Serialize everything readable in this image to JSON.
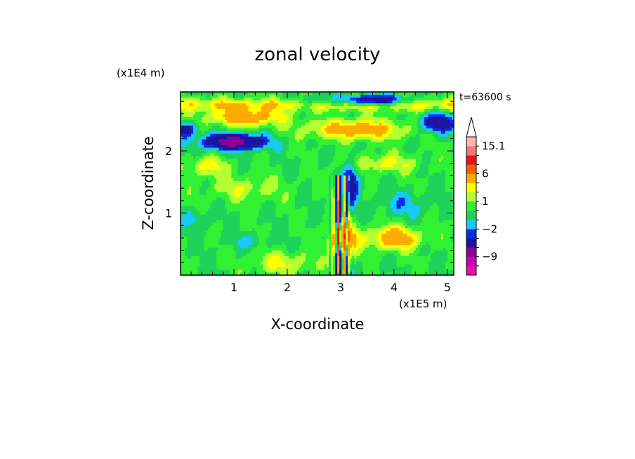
{
  "chart_data": {
    "type": "heatmap",
    "title": "zonal velocity",
    "xlabel": "X-coordinate",
    "ylabel": "Z-coordinate",
    "x_unit": "(x1E5 m)",
    "y_unit": "(x1E4 m)",
    "time_label": "t=63600 s",
    "xlim": [
      0,
      5.12
    ],
    "ylim": [
      0,
      2.95
    ],
    "x_ticks": [
      1,
      2,
      3,
      4,
      5
    ],
    "y_ticks": [
      1,
      2
    ],
    "colorbar": {
      "levels": [
        -15,
        -12,
        -9,
        -6,
        -3,
        -2,
        -1,
        0,
        1,
        2,
        3,
        6,
        9,
        12,
        15.1
      ],
      "colors": [
        "#e60fb4",
        "#c800b4",
        "#8c0096",
        "#1e14a0",
        "#0a2de1",
        "#19c8ff",
        "#1ed25a",
        "#32f032",
        "#b4ff32",
        "#ffff00",
        "#ffaa00",
        "#ff5a00",
        "#e61414",
        "#f57878",
        "#ffb4b4"
      ],
      "labels": [
        {
          "value": 15.1,
          "text": "15.1"
        },
        {
          "value": 6,
          "text": "6"
        },
        {
          "value": 1,
          "text": "1"
        },
        {
          "value": -2,
          "text": "−2"
        },
        {
          "value": -9,
          "text": "−9"
        }
      ],
      "extend_max": true
    },
    "features": [
      {
        "type": "band",
        "x": [
          0,
          5.12
        ],
        "z": 2.75,
        "dz": 0.1,
        "v": 2.5
      },
      {
        "type": "blob",
        "x": 1.2,
        "z": 2.55,
        "rx": 0.7,
        "rz": 0.14,
        "v": 4.5
      },
      {
        "type": "blob",
        "x": 3.3,
        "z": 2.35,
        "rx": 0.9,
        "rz": 0.16,
        "v": 4.2
      },
      {
        "type": "blob",
        "x": 1.0,
        "z": 2.15,
        "rx": 0.55,
        "rz": 0.12,
        "v": -8
      },
      {
        "type": "blob",
        "x": 3.6,
        "z": 2.82,
        "rx": 0.6,
        "rz": 0.08,
        "v": -6
      },
      {
        "type": "blob",
        "x": 4.8,
        "z": 2.45,
        "rx": 0.3,
        "rz": 0.15,
        "v": -5
      },
      {
        "type": "blob",
        "x": 0.1,
        "z": 2.35,
        "rx": 0.2,
        "rz": 0.12,
        "v": -4
      },
      {
        "type": "blob",
        "x": 2.5,
        "z": 2.8,
        "rx": 0.35,
        "rz": 0.1,
        "v": -2
      },
      {
        "type": "blob",
        "x": 3.2,
        "z": 1.5,
        "rx": 0.15,
        "rz": 0.35,
        "v": -4
      },
      {
        "type": "blob",
        "x": 3.05,
        "z": 0.6,
        "rx": 0.25,
        "rz": 0.25,
        "v": 5.5
      },
      {
        "type": "blob",
        "x": 4.0,
        "z": 0.6,
        "rx": 0.5,
        "rz": 0.18,
        "v": 4.5
      },
      {
        "type": "blob",
        "x": 1.2,
        "z": 1.4,
        "rx": 0.7,
        "rz": 0.2,
        "v": 1.8
      },
      {
        "type": "blob",
        "x": 0.5,
        "z": 1.75,
        "rx": 0.4,
        "rz": 0.15,
        "v": 2.5
      },
      {
        "type": "blob",
        "x": 3.8,
        "z": 1.8,
        "rx": 0.7,
        "rz": 0.15,
        "v": 2.2
      },
      {
        "type": "blob",
        "x": 4.2,
        "z": 1.15,
        "rx": 0.5,
        "rz": 0.2,
        "v": -1.5
      },
      {
        "type": "blob",
        "x": 0.3,
        "z": 0.9,
        "rx": 0.25,
        "rz": 0.15,
        "v": -1.5
      },
      {
        "type": "blob",
        "x": 1.3,
        "z": 0.55,
        "rx": 0.4,
        "rz": 0.12,
        "v": -1
      },
      {
        "type": "blob",
        "x": 1.9,
        "z": 0.2,
        "rx": 0.6,
        "rz": 0.18,
        "v": 2.2
      }
    ]
  }
}
